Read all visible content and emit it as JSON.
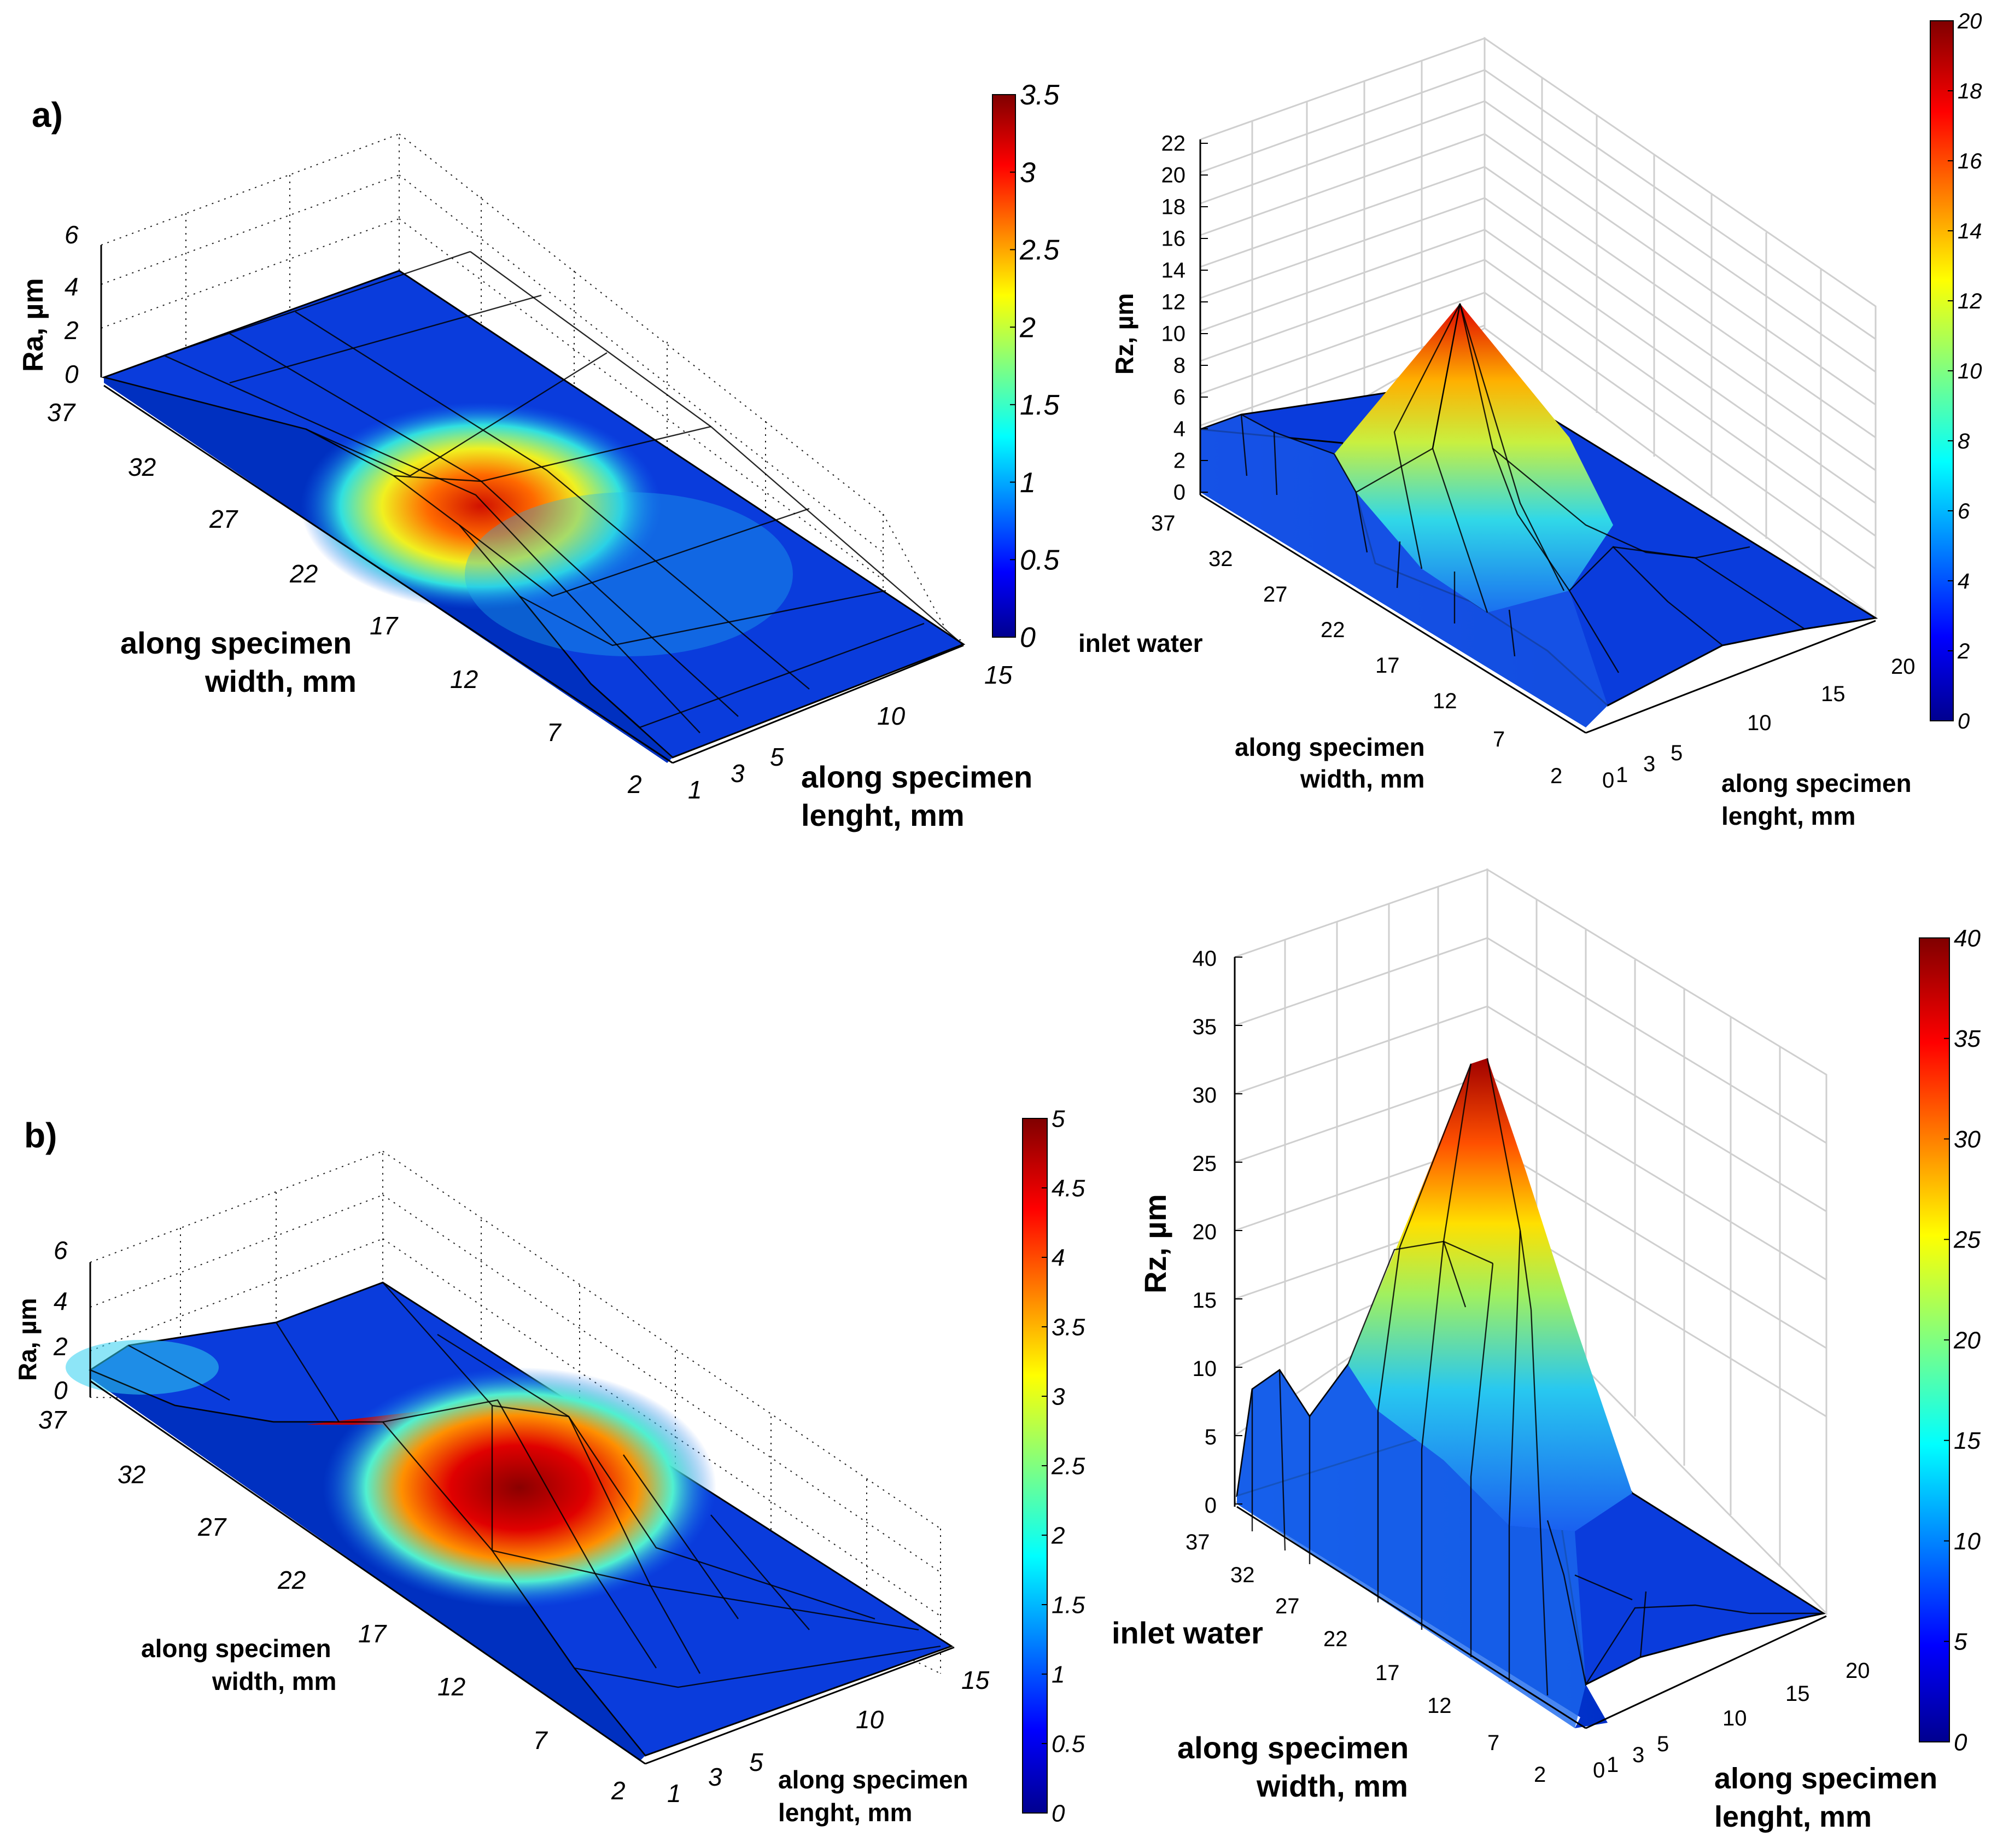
{
  "figure": {
    "panel_a_label": "a)",
    "panel_b_label": "b)",
    "inlet_label": "inlet water"
  },
  "chart_data": [
    {
      "id": "a_ra",
      "type": "surface3d",
      "zlabel": "Ra, µm",
      "xlabel": [
        "along specimen",
        "width, mm"
      ],
      "ylabel": [
        "along specimen",
        "lenght, mm"
      ],
      "width_ticks": [
        "37",
        "32",
        "27",
        "22",
        "17",
        "12",
        "7",
        "2"
      ],
      "length_ticks": [
        "1",
        "3",
        "5",
        "10",
        "15"
      ],
      "z_ticks": [
        "0",
        "2",
        "4",
        "6"
      ],
      "zlim": [
        0,
        6
      ],
      "colorbar": {
        "min": 0,
        "max": 3.5,
        "ticks": [
          "0",
          "0.5",
          "1",
          "1.5",
          "2",
          "2.5",
          "3",
          "3.5"
        ]
      },
      "peak": {
        "width_mm": 22,
        "length_mm": 3,
        "value": 3.3
      }
    },
    {
      "id": "a_rz",
      "type": "surface3d",
      "zlabel": "Rz, µm",
      "xlabel": [
        "along specimen",
        "width, mm"
      ],
      "ylabel": [
        "along specimen",
        "lenght, mm"
      ],
      "width_ticks": [
        "37",
        "32",
        "27",
        "22",
        "17",
        "12",
        "7",
        "2"
      ],
      "length_ticks": [
        "0",
        "1",
        "3",
        "5",
        "10",
        "15",
        "20"
      ],
      "z_ticks": [
        "0",
        "2",
        "4",
        "6",
        "8",
        "10",
        "12",
        "14",
        "16",
        "18",
        "20",
        "22"
      ],
      "zlim": [
        0,
        22
      ],
      "colorbar": {
        "min": 0,
        "max": 20,
        "ticks": [
          "0",
          "2",
          "4",
          "6",
          "8",
          "10",
          "12",
          "14",
          "16",
          "18",
          "20"
        ]
      },
      "peak": {
        "width_mm": 22,
        "length_mm": 1,
        "value": 13.5
      }
    },
    {
      "id": "b_ra",
      "type": "surface3d",
      "zlabel": "Ra, µm",
      "xlabel": [
        "along specimen",
        "width, mm"
      ],
      "ylabel": [
        "along specimen",
        "lenght, mm"
      ],
      "width_ticks": [
        "37",
        "32",
        "27",
        "22",
        "17",
        "12",
        "7",
        "2"
      ],
      "length_ticks": [
        "1",
        "3",
        "5",
        "10",
        "15"
      ],
      "z_ticks": [
        "0",
        "2",
        "4",
        "6"
      ],
      "zlim": [
        0,
        6
      ],
      "colorbar": {
        "min": 0,
        "max": 5,
        "ticks": [
          "0",
          "0.5",
          "1",
          "1.5",
          "2",
          "2.5",
          "3",
          "3.5",
          "4",
          "4.5",
          "5"
        ]
      },
      "peak": {
        "width_mm": 17,
        "length_mm": 1,
        "value": 4.8
      }
    },
    {
      "id": "b_rz",
      "type": "surface3d",
      "zlabel": "Rz, µm",
      "xlabel": [
        "along specimen",
        "width, mm"
      ],
      "ylabel": [
        "along specimen",
        "lenght, mm"
      ],
      "width_ticks": [
        "37",
        "32",
        "27",
        "22",
        "17",
        "12",
        "7",
        "2"
      ],
      "length_ticks": [
        "0",
        "1",
        "3",
        "5",
        "10",
        "15",
        "20"
      ],
      "z_ticks": [
        "0",
        "5",
        "10",
        "15",
        "20",
        "25",
        "30",
        "35",
        "40"
      ],
      "zlim": [
        0,
        40
      ],
      "colorbar": {
        "min": 0,
        "max": 40,
        "ticks": [
          "0",
          "5",
          "10",
          "15",
          "20",
          "25",
          "30",
          "35",
          "40"
        ]
      },
      "peak": {
        "width_mm": 22,
        "length_mm": 1,
        "value": 35
      }
    }
  ],
  "colors": {
    "jet": [
      "#00008f",
      "#0000ff",
      "#00a0ff",
      "#2ef0d0",
      "#b0ff50",
      "#ffe000",
      "#ff7000",
      "#f00000",
      "#800000"
    ],
    "surface_blue": "#0a3cdc"
  }
}
